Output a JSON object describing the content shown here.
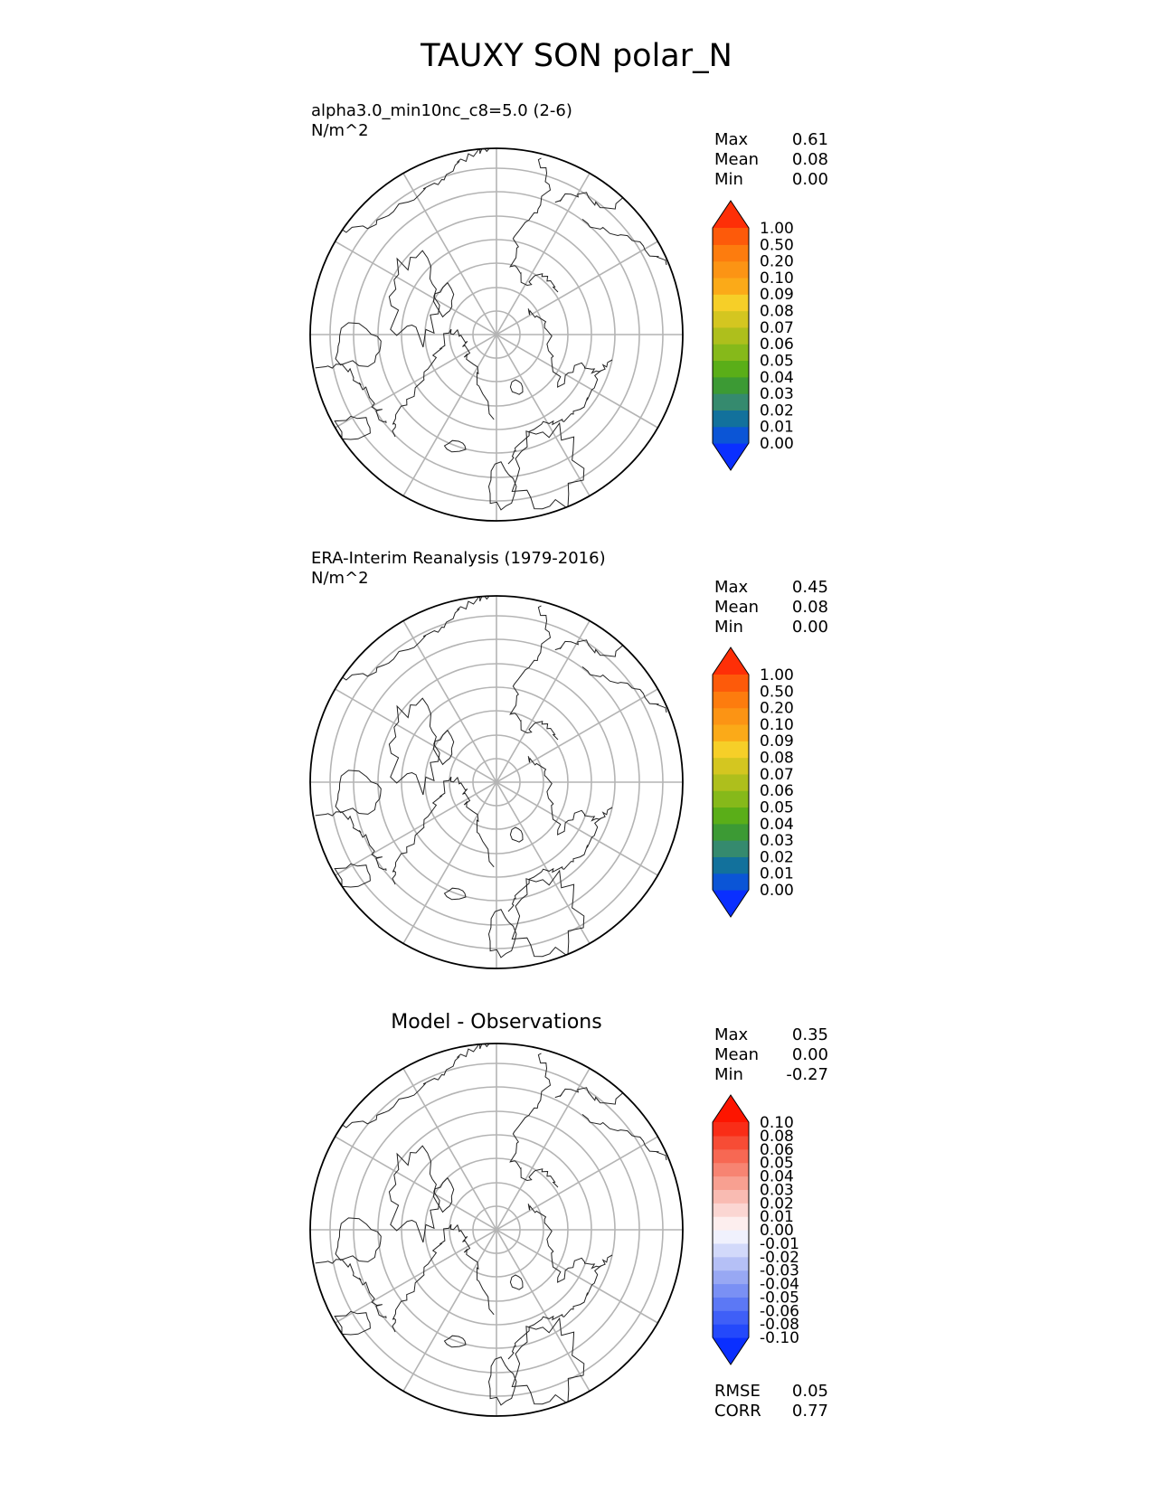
{
  "figure": {
    "title": "TAUXY SON polar_N"
  },
  "chart_data": [
    {
      "type": "heatmap",
      "projection": "polar-north-stereographic",
      "title": "alpha3.0_min10nc_c8=5.0 (2-6)",
      "units": "N/m^2",
      "stats": [
        {
          "label": "Max",
          "value": "0.61"
        },
        {
          "label": "Mean",
          "value": "0.08"
        },
        {
          "label": "Min",
          "value": "0.00"
        }
      ],
      "colorbar": {
        "levels": [
          "0.00",
          "0.01",
          "0.02",
          "0.03",
          "0.04",
          "0.05",
          "0.06",
          "0.07",
          "0.08",
          "0.09",
          "0.10",
          "0.20",
          "0.50",
          "1.00"
        ],
        "colors": [
          "#0a2fff",
          "#0b55d6",
          "#12719c",
          "#358a6e",
          "#3c9a34",
          "#5aae18",
          "#86b91a",
          "#aebf1c",
          "#d4c620",
          "#f6cf28",
          "#fbaa18",
          "#fc9414",
          "#fd7c0e",
          "#fd5a0a",
          "#fe2f07"
        ],
        "extend": "both"
      }
    },
    {
      "type": "heatmap",
      "projection": "polar-north-stereographic",
      "title": "ERA-Interim Reanalysis (1979-2016)",
      "units": "N/m^2",
      "stats": [
        {
          "label": "Max",
          "value": "0.45"
        },
        {
          "label": "Mean",
          "value": "0.08"
        },
        {
          "label": "Min",
          "value": "0.00"
        }
      ],
      "colorbar": {
        "levels": [
          "0.00",
          "0.01",
          "0.02",
          "0.03",
          "0.04",
          "0.05",
          "0.06",
          "0.07",
          "0.08",
          "0.09",
          "0.10",
          "0.20",
          "0.50",
          "1.00"
        ],
        "colors": [
          "#0a2fff",
          "#0b55d6",
          "#12719c",
          "#358a6e",
          "#3c9a34",
          "#5aae18",
          "#86b91a",
          "#aebf1c",
          "#d4c620",
          "#f6cf28",
          "#fbaa18",
          "#fc9414",
          "#fd7c0e",
          "#fd5a0a",
          "#fe2f07"
        ],
        "extend": "both"
      }
    },
    {
      "type": "heatmap",
      "projection": "polar-north-stereographic",
      "title": "Model - Observations",
      "stats": [
        {
          "label": "Max",
          "value": "0.35"
        },
        {
          "label": "Mean",
          "value": "0.00"
        },
        {
          "label": "Min",
          "value": "-0.27"
        }
      ],
      "metrics": [
        {
          "label": "RMSE",
          "value": "0.05"
        },
        {
          "label": "CORR",
          "value": "0.77"
        }
      ],
      "colorbar": {
        "levels": [
          "-0.10",
          "-0.08",
          "-0.06",
          "-0.05",
          "-0.04",
          "-0.03",
          "-0.02",
          "-0.01",
          "0.00",
          "0.01",
          "0.02",
          "0.03",
          "0.04",
          "0.05",
          "0.06",
          "0.08",
          "0.10"
        ],
        "colors": [
          "#0a2fff",
          "#2449fb",
          "#3f5ff7",
          "#5c78f5",
          "#7a90f4",
          "#98a8f3",
          "#b5c0f6",
          "#d2d9fa",
          "#f0f1fd",
          "#fdeeee",
          "#fbd6d2",
          "#f9bbb2",
          "#f8a091",
          "#f78472",
          "#f76853",
          "#f74c35",
          "#f92d17",
          "#fd1500"
        ],
        "extend": "both"
      }
    }
  ]
}
